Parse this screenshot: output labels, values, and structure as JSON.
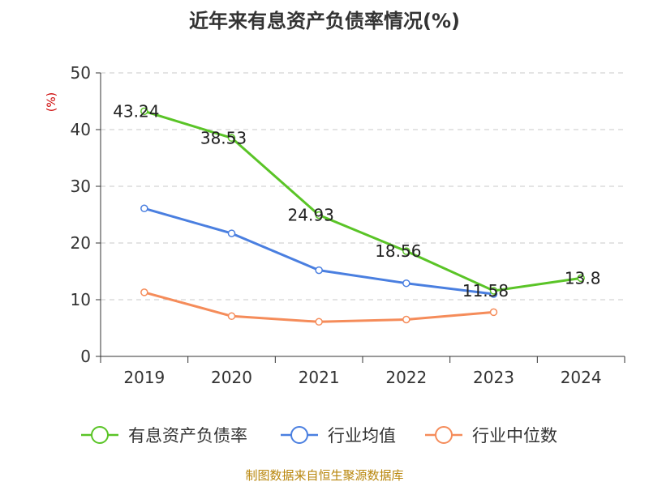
{
  "chart_data": {
    "type": "line",
    "title": "近年来有息资产负债率情况(%)",
    "ylabel": "(%)",
    "xlabel": "",
    "categories": [
      "2019",
      "2020",
      "2021",
      "2022",
      "2023",
      "2024"
    ],
    "ylim": [
      0,
      50
    ],
    "yticks": [
      "0",
      "10",
      "20",
      "30",
      "40",
      "50"
    ],
    "grid": true,
    "legend_position": "bottom",
    "series": [
      {
        "name": "有息资产负债率",
        "color": "#5ac427",
        "values": [
          43.24,
          38.53,
          24.93,
          18.56,
          11.58,
          13.8
        ],
        "labels": [
          "43.24",
          "38.53",
          "24.93",
          "18.56",
          "11.58",
          "13.8"
        ]
      },
      {
        "name": "行业均值",
        "color": "#4a7fe0",
        "values": [
          26.1,
          21.7,
          15.2,
          12.9,
          11.0,
          null
        ]
      },
      {
        "name": "行业中位数",
        "color": "#f58c5a",
        "values": [
          11.3,
          7.1,
          6.1,
          6.5,
          7.8,
          null
        ]
      }
    ],
    "source": "制图数据来自恒生聚源数据库"
  }
}
